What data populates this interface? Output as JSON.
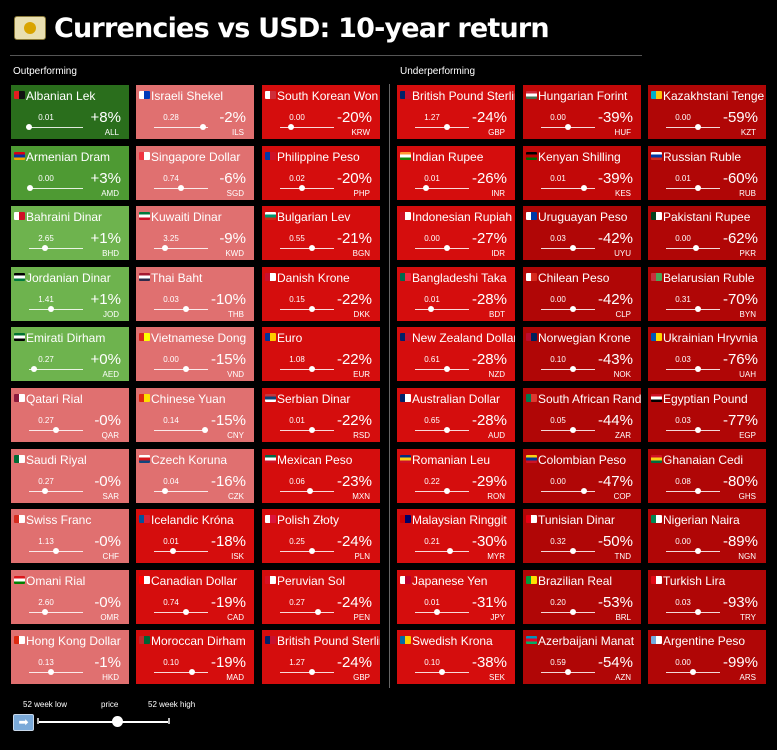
{
  "header": {
    "title": "Currencies vs USD: 10-year return",
    "icon": "money-bill-icon"
  },
  "sections": {
    "outperforming": "Outperforming",
    "underperforming": "Underperforming"
  },
  "legend": {
    "low_label": "52 week low",
    "price_label": "price",
    "high_label": "52 week high",
    "play_icon": "play-arrow-icon"
  },
  "colors": {
    "dark_green": "#2a6e1c",
    "mid_green": "#4e9a33",
    "light_green": "#6eb34e",
    "light_red": "#e07070",
    "red": "#d50d0d",
    "dark_red": "#b00606"
  },
  "chart_data": {
    "type": "table",
    "title": "Currencies vs USD: 10-year return",
    "columns": [
      [
        {
          "name": "Albanian Lek",
          "code": "ALL",
          "price": "0.01",
          "ret": "+8%",
          "ret_value": 8,
          "range_pos": 0.0,
          "color": "#2a6e1c",
          "flag": [
            "#e41e20",
            "#111111"
          ]
        },
        {
          "name": "Armenian Dram",
          "code": "AMD",
          "price": "0.00",
          "ret": "+3%",
          "ret_value": 3,
          "range_pos": 0.02,
          "color": "#4e9a33",
          "flag": [
            "#d90012",
            "#0033a0",
            "#f2a800"
          ]
        },
        {
          "name": "Bahraini Dinar",
          "code": "BHD",
          "price": "2.65",
          "ret": "+1%",
          "ret_value": 1,
          "range_pos": 0.3,
          "color": "#6eb34e",
          "flag": [
            "#ffffff",
            "#ce1126"
          ]
        },
        {
          "name": "Jordanian Dinar",
          "code": "JOD",
          "price": "1.41",
          "ret": "+1%",
          "ret_value": 1,
          "range_pos": 0.4,
          "color": "#6eb34e",
          "flag": [
            "#000000",
            "#ffffff",
            "#007a3d"
          ]
        },
        {
          "name": "Emirati Dirham",
          "code": "AED",
          "price": "0.27",
          "ret": "+0%",
          "ret_value": 0,
          "range_pos": 0.1,
          "color": "#6eb34e",
          "flag": [
            "#00732f",
            "#ffffff",
            "#000000"
          ]
        },
        {
          "name": "Qatari Rial",
          "code": "QAR",
          "price": "0.27",
          "ret": "-0%",
          "ret_value": -0.2,
          "range_pos": 0.5,
          "color": "#e07070",
          "flag": [
            "#8d1b3d",
            "#ffffff"
          ]
        },
        {
          "name": "Saudi Riyal",
          "code": "SAR",
          "price": "0.27",
          "ret": "-0%",
          "ret_value": -0.3,
          "range_pos": 0.3,
          "color": "#e07070",
          "flag": [
            "#006c35",
            "#ffffff"
          ]
        },
        {
          "name": "Swiss Franc",
          "code": "CHF",
          "price": "1.13",
          "ret": "-0%",
          "ret_value": -0.4,
          "range_pos": 0.5,
          "color": "#e07070",
          "flag": [
            "#d52b1e",
            "#ffffff"
          ]
        },
        {
          "name": "Omani Rial",
          "code": "OMR",
          "price": "2.60",
          "ret": "-0%",
          "ret_value": -0.5,
          "range_pos": 0.3,
          "color": "#e07070",
          "flag": [
            "#db161b",
            "#ffffff",
            "#008000"
          ]
        },
        {
          "name": "Hong Kong Dollar",
          "code": "HKD",
          "price": "0.13",
          "ret": "-1%",
          "ret_value": -1,
          "range_pos": 0.4,
          "color": "#e07070",
          "flag": [
            "#de2910",
            "#ffffff"
          ]
        }
      ],
      [
        {
          "name": "Israeli Shekel",
          "code": "ILS",
          "price": "0.28",
          "ret": "-2%",
          "ret_value": -2,
          "range_pos": 0.9,
          "color": "#e07070",
          "flag": [
            "#ffffff",
            "#0038b8"
          ]
        },
        {
          "name": "Singapore Dollar",
          "code": "SGD",
          "price": "0.74",
          "ret": "-6%",
          "ret_value": -6,
          "range_pos": 0.5,
          "color": "#e07070",
          "flag": [
            "#ef3340",
            "#ffffff"
          ]
        },
        {
          "name": "Kuwaiti Dinar",
          "code": "KWD",
          "price": "3.25",
          "ret": "-9%",
          "ret_value": -9,
          "range_pos": 0.2,
          "color": "#e07070",
          "flag": [
            "#007a3d",
            "#ffffff",
            "#ce1126"
          ]
        },
        {
          "name": "Thai Baht",
          "code": "THB",
          "price": "0.03",
          "ret": "-10%",
          "ret_value": -10,
          "range_pos": 0.6,
          "color": "#e07070",
          "flag": [
            "#a51931",
            "#ffffff",
            "#2d2a4a"
          ]
        },
        {
          "name": "Vietnamese Dong",
          "code": "VND",
          "price": "0.00",
          "ret": "-15%",
          "ret_value": -15,
          "range_pos": 0.6,
          "color": "#e07070",
          "flag": [
            "#da251d",
            "#ffff00"
          ]
        },
        {
          "name": "Chinese Yuan",
          "code": "CNY",
          "price": "0.14",
          "ret": "-15%",
          "ret_value": -15,
          "range_pos": 0.95,
          "color": "#e07070",
          "flag": [
            "#de2910",
            "#ffde00"
          ]
        },
        {
          "name": "Czech Koruna",
          "code": "CZK",
          "price": "0.04",
          "ret": "-16%",
          "ret_value": -16,
          "range_pos": 0.2,
          "color": "#e07070",
          "flag": [
            "#ffffff",
            "#d7141a",
            "#11457e"
          ]
        },
        {
          "name": "Icelandic Króna",
          "code": "ISK",
          "price": "0.01",
          "ret": "-18%",
          "ret_value": -18,
          "range_pos": 0.35,
          "color": "#d50d0d",
          "flag": [
            "#02529c",
            "#dc1e35"
          ]
        },
        {
          "name": "Canadian Dollar",
          "code": "CAD",
          "price": "0.74",
          "ret": "-19%",
          "ret_value": -19,
          "range_pos": 0.6,
          "color": "#d50d0d",
          "flag": [
            "#ff0000",
            "#ffffff"
          ]
        },
        {
          "name": "Moroccan Dirham",
          "code": "MAD",
          "price": "0.10",
          "ret": "-19%",
          "ret_value": -19,
          "range_pos": 0.7,
          "color": "#d50d0d",
          "flag": [
            "#c1272d",
            "#006233"
          ]
        }
      ],
      [
        {
          "name": "South Korean Won",
          "code": "KRW",
          "price": "0.00",
          "ret": "-20%",
          "ret_value": -20,
          "range_pos": 0.2,
          "color": "#d50d0d",
          "flag": [
            "#ffffff",
            "#cd2e3a"
          ]
        },
        {
          "name": "Philippine Peso",
          "code": "PHP",
          "price": "0.02",
          "ret": "-20%",
          "ret_value": -20,
          "range_pos": 0.4,
          "color": "#d50d0d",
          "flag": [
            "#0038a8",
            "#ce1126"
          ]
        },
        {
          "name": "Bulgarian Lev",
          "code": "BGN",
          "price": "0.55",
          "ret": "-21%",
          "ret_value": -21,
          "range_pos": 0.6,
          "color": "#d50d0d",
          "flag": [
            "#ffffff",
            "#00966e",
            "#d62612"
          ]
        },
        {
          "name": "Danish Krone",
          "code": "DKK",
          "price": "0.15",
          "ret": "-22%",
          "ret_value": -22,
          "range_pos": 0.6,
          "color": "#d50d0d",
          "flag": [
            "#c8102e",
            "#ffffff"
          ]
        },
        {
          "name": "Euro",
          "code": "EUR",
          "price": "1.08",
          "ret": "-22%",
          "ret_value": -22,
          "range_pos": 0.6,
          "color": "#d50d0d",
          "flag": [
            "#003399",
            "#ffcc00"
          ]
        },
        {
          "name": "Serbian Dinar",
          "code": "RSD",
          "price": "0.01",
          "ret": "-22%",
          "ret_value": -22,
          "range_pos": 0.6,
          "color": "#d50d0d",
          "flag": [
            "#c6363c",
            "#0c4076",
            "#ffffff"
          ]
        },
        {
          "name": "Mexican Peso",
          "code": "MXN",
          "price": "0.06",
          "ret": "-23%",
          "ret_value": -23,
          "range_pos": 0.55,
          "color": "#d50d0d",
          "flag": [
            "#006847",
            "#ffffff",
            "#ce1126"
          ]
        },
        {
          "name": "Polish Złoty",
          "code": "PLN",
          "price": "0.25",
          "ret": "-24%",
          "ret_value": -24,
          "range_pos": 0.6,
          "color": "#d50d0d",
          "flag": [
            "#ffffff",
            "#dc143c"
          ]
        },
        {
          "name": "Peruvian Sol",
          "code": "PEN",
          "price": "0.27",
          "ret": "-24%",
          "ret_value": -24,
          "range_pos": 0.7,
          "color": "#d50d0d",
          "flag": [
            "#d91023",
            "#ffffff"
          ]
        },
        {
          "name": "British Pound Sterling",
          "code": "GBP",
          "price": "1.27",
          "ret": "-24%",
          "ret_value": -24,
          "range_pos": 0.6,
          "color": "#d50d0d",
          "flag": [
            "#012169",
            "#c8102e"
          ]
        }
      ],
      [
        {
          "name": "British Pound Sterling",
          "code": "GBP",
          "price": "1.27",
          "ret": "-24%",
          "ret_value": -24,
          "range_pos": 0.6,
          "color": "#d50d0d",
          "flag": [
            "#012169",
            "#c8102e"
          ]
        },
        {
          "name": "Indian Rupee",
          "code": "INR",
          "price": "0.01",
          "ret": "-26%",
          "ret_value": -26,
          "range_pos": 0.2,
          "color": "#d50d0d",
          "flag": [
            "#ff9933",
            "#ffffff",
            "#138808"
          ]
        },
        {
          "name": "Indonesian Rupiah",
          "code": "IDR",
          "price": "0.00",
          "ret": "-27%",
          "ret_value": -27,
          "range_pos": 0.6,
          "color": "#d50d0d",
          "flag": [
            "#ce1126",
            "#ffffff"
          ]
        },
        {
          "name": "Bangladeshi Taka",
          "code": "BDT",
          "price": "0.01",
          "ret": "-28%",
          "ret_value": -28,
          "range_pos": 0.3,
          "color": "#d50d0d",
          "flag": [
            "#006a4e",
            "#f42a41"
          ]
        },
        {
          "name": "New Zealand Dollar",
          "code": "NZD",
          "price": "0.61",
          "ret": "-28%",
          "ret_value": -28,
          "range_pos": 0.6,
          "color": "#d50d0d",
          "flag": [
            "#012169",
            "#c8102e"
          ]
        },
        {
          "name": "Australian Dollar",
          "code": "AUD",
          "price": "0.65",
          "ret": "-28%",
          "ret_value": -28,
          "range_pos": 0.6,
          "color": "#d50d0d",
          "flag": [
            "#012169",
            "#ffffff"
          ]
        },
        {
          "name": "Romanian Leu",
          "code": "RON",
          "price": "0.22",
          "ret": "-29%",
          "ret_value": -29,
          "range_pos": 0.6,
          "color": "#d50d0d",
          "flag": [
            "#002b7f",
            "#fcd116",
            "#ce1126"
          ]
        },
        {
          "name": "Malaysian Ringgit",
          "code": "MYR",
          "price": "0.21",
          "ret": "-30%",
          "ret_value": -30,
          "range_pos": 0.65,
          "color": "#d50d0d",
          "flag": [
            "#cc0001",
            "#010066"
          ]
        },
        {
          "name": "Japanese Yen",
          "code": "JPY",
          "price": "0.01",
          "ret": "-31%",
          "ret_value": -31,
          "range_pos": 0.4,
          "color": "#d50d0d",
          "flag": [
            "#ffffff",
            "#bc002d"
          ]
        },
        {
          "name": "Swedish Krona",
          "code": "SEK",
          "price": "0.10",
          "ret": "-38%",
          "ret_value": -38,
          "range_pos": 0.5,
          "color": "#d50d0d",
          "flag": [
            "#006aa7",
            "#fecc00"
          ]
        }
      ],
      [
        {
          "name": "Hungarian Forint",
          "code": "HUF",
          "price": "0.00",
          "ret": "-39%",
          "ret_value": -39,
          "range_pos": 0.5,
          "color": "#c20808",
          "flag": [
            "#ce2939",
            "#ffffff",
            "#477050"
          ]
        },
        {
          "name": "Kenyan Shilling",
          "code": "KES",
          "price": "0.01",
          "ret": "-39%",
          "ret_value": -39,
          "range_pos": 0.8,
          "color": "#c20808",
          "flag": [
            "#000000",
            "#bb0000",
            "#006600"
          ]
        },
        {
          "name": "Uruguayan Peso",
          "code": "UYU",
          "price": "0.03",
          "ret": "-42%",
          "ret_value": -42,
          "range_pos": 0.6,
          "color": "#b00606",
          "flag": [
            "#ffffff",
            "#0038a8"
          ]
        },
        {
          "name": "Chilean Peso",
          "code": "CLP",
          "price": "0.00",
          "ret": "-42%",
          "ret_value": -42,
          "range_pos": 0.6,
          "color": "#b00606",
          "flag": [
            "#ffffff",
            "#d52b1e"
          ]
        },
        {
          "name": "Norwegian Krone",
          "code": "NOK",
          "price": "0.10",
          "ret": "-43%",
          "ret_value": -43,
          "range_pos": 0.6,
          "color": "#b00606",
          "flag": [
            "#ba0c2f",
            "#00205b"
          ]
        },
        {
          "name": "South African Rand",
          "code": "ZAR",
          "price": "0.05",
          "ret": "-44%",
          "ret_value": -44,
          "range_pos": 0.6,
          "color": "#b00606",
          "flag": [
            "#007a4d",
            "#de3831"
          ]
        },
        {
          "name": "Colombian Peso",
          "code": "COP",
          "price": "0.00",
          "ret": "-47%",
          "ret_value": -47,
          "range_pos": 0.8,
          "color": "#b00606",
          "flag": [
            "#fcd116",
            "#003893",
            "#ce1126"
          ]
        },
        {
          "name": "Tunisian Dinar",
          "code": "TND",
          "price": "0.32",
          "ret": "-50%",
          "ret_value": -50,
          "range_pos": 0.6,
          "color": "#b00606",
          "flag": [
            "#e70013",
            "#ffffff"
          ]
        },
        {
          "name": "Brazilian Real",
          "code": "BRL",
          "price": "0.20",
          "ret": "-53%",
          "ret_value": -53,
          "range_pos": 0.6,
          "color": "#b00606",
          "flag": [
            "#009c3b",
            "#ffdf00"
          ]
        },
        {
          "name": "Azerbaijani Manat",
          "code": "AZN",
          "price": "0.59",
          "ret": "-54%",
          "ret_value": -54,
          "range_pos": 0.5,
          "color": "#b00606",
          "flag": [
            "#0092bc",
            "#e4002b",
            "#00af66"
          ]
        }
      ],
      [
        {
          "name": "Kazakhstani Tenge",
          "code": "KZT",
          "price": "0.00",
          "ret": "-59%",
          "ret_value": -59,
          "range_pos": 0.6,
          "color": "#b00606",
          "flag": [
            "#00afca",
            "#fec50c"
          ]
        },
        {
          "name": "Russian Ruble",
          "code": "RUB",
          "price": "0.01",
          "ret": "-60%",
          "ret_value": -60,
          "range_pos": 0.6,
          "color": "#b00606",
          "flag": [
            "#ffffff",
            "#0039a6",
            "#d52b1e"
          ]
        },
        {
          "name": "Pakistani Rupee",
          "code": "PKR",
          "price": "0.00",
          "ret": "-62%",
          "ret_value": -62,
          "range_pos": 0.55,
          "color": "#b00606",
          "flag": [
            "#01411c",
            "#ffffff"
          ]
        },
        {
          "name": "Belarusian Ruble",
          "code": "BYN",
          "price": "0.31",
          "ret": "-70%",
          "ret_value": -70,
          "range_pos": 0.6,
          "color": "#b00606",
          "flag": [
            "#c8313e",
            "#4aa657"
          ]
        },
        {
          "name": "Ukrainian Hryvnia",
          "code": "UAH",
          "price": "0.03",
          "ret": "-76%",
          "ret_value": -76,
          "range_pos": 0.6,
          "color": "#b00606",
          "flag": [
            "#0057b7",
            "#ffd700"
          ]
        },
        {
          "name": "Egyptian Pound",
          "code": "EGP",
          "price": "0.03",
          "ret": "-77%",
          "ret_value": -77,
          "range_pos": 0.6,
          "color": "#b00606",
          "flag": [
            "#ce1126",
            "#ffffff",
            "#000000"
          ]
        },
        {
          "name": "Ghanaian Cedi",
          "code": "GHS",
          "price": "0.08",
          "ret": "-80%",
          "ret_value": -80,
          "range_pos": 0.6,
          "color": "#b00606",
          "flag": [
            "#ce1126",
            "#fcd116",
            "#006b3f"
          ]
        },
        {
          "name": "Nigerian Naira",
          "code": "NGN",
          "price": "0.00",
          "ret": "-89%",
          "ret_value": -89,
          "range_pos": 0.6,
          "color": "#b00606",
          "flag": [
            "#008751",
            "#ffffff"
          ]
        },
        {
          "name": "Turkish Lira",
          "code": "TRY",
          "price": "0.03",
          "ret": "-93%",
          "ret_value": -93,
          "range_pos": 0.6,
          "color": "#b00606",
          "flag": [
            "#e30a17",
            "#ffffff"
          ]
        },
        {
          "name": "Argentine Peso",
          "code": "ARS",
          "price": "0.00",
          "ret": "-99%",
          "ret_value": -99,
          "range_pos": 0.5,
          "color": "#b00606",
          "flag": [
            "#74acdf",
            "#ffffff"
          ]
        }
      ]
    ]
  }
}
